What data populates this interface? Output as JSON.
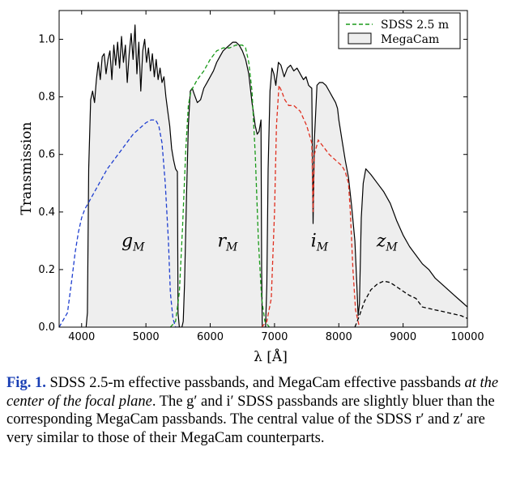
{
  "chart_data": {
    "type": "line",
    "xlabel": "λ [Å]",
    "ylabel": "Transmission",
    "xlim": [
      3650,
      10000
    ],
    "ylim": [
      0,
      1.1
    ],
    "xticks": [
      4000,
      5000,
      6000,
      7000,
      8000,
      9000,
      10000
    ],
    "yticks": [
      0.0,
      0.2,
      0.4,
      0.6,
      0.8,
      1.0
    ],
    "ytick_labels": [
      "0.0",
      "0.2",
      "0.4",
      "0.6",
      "0.8",
      "1.0"
    ],
    "legend": {
      "placement": "top-right",
      "entries": [
        "SDSS 2.5 m",
        "MegaCam"
      ]
    },
    "band_labels": [
      {
        "main": "g",
        "sub": "M",
        "x": 4800,
        "y": 0.28
      },
      {
        "main": "r",
        "sub": "M",
        "x": 6270,
        "y": 0.28
      },
      {
        "main": "i",
        "sub": "M",
        "x": 7700,
        "y": 0.28
      },
      {
        "main": "z",
        "sub": "M",
        "x": 8750,
        "y": 0.28
      }
    ],
    "series": [
      {
        "name": "MegaCam",
        "style": "filled",
        "color": "#000000",
        "fill": "#eeeeee",
        "points": [
          [
            4070,
            0
          ],
          [
            4090,
            0.05
          ],
          [
            4110,
            0.55
          ],
          [
            4140,
            0.79
          ],
          [
            4170,
            0.82
          ],
          [
            4200,
            0.78
          ],
          [
            4230,
            0.86
          ],
          [
            4260,
            0.92
          ],
          [
            4290,
            0.86
          ],
          [
            4320,
            0.94
          ],
          [
            4350,
            0.95
          ],
          [
            4380,
            0.88
          ],
          [
            4410,
            0.93
          ],
          [
            4440,
            0.96
          ],
          [
            4470,
            0.86
          ],
          [
            4500,
            0.98
          ],
          [
            4530,
            0.91
          ],
          [
            4560,
            0.99
          ],
          [
            4590,
            0.9
          ],
          [
            4620,
            1.01
          ],
          [
            4650,
            0.92
          ],
          [
            4680,
            0.98
          ],
          [
            4710,
            0.85
          ],
          [
            4740,
            0.95
          ],
          [
            4770,
            1.02
          ],
          [
            4800,
            0.93
          ],
          [
            4830,
            1.05
          ],
          [
            4860,
            0.88
          ],
          [
            4890,
            0.99
          ],
          [
            4920,
            0.82
          ],
          [
            4950,
            0.96
          ],
          [
            4980,
            1.0
          ],
          [
            5010,
            0.92
          ],
          [
            5040,
            0.97
          ],
          [
            5070,
            0.89
          ],
          [
            5100,
            0.95
          ],
          [
            5130,
            0.87
          ],
          [
            5160,
            0.93
          ],
          [
            5190,
            0.86
          ],
          [
            5220,
            0.9
          ],
          [
            5250,
            0.85
          ],
          [
            5280,
            0.87
          ],
          [
            5310,
            0.8
          ],
          [
            5340,
            0.75
          ],
          [
            5370,
            0.7
          ],
          [
            5400,
            0.62
          ],
          [
            5430,
            0.58
          ],
          [
            5460,
            0.55
          ],
          [
            5490,
            0.54
          ],
          [
            5500,
            0.05
          ],
          [
            5520,
            0
          ],
          [
            5560,
            0
          ],
          [
            5580,
            0.02
          ],
          [
            5600,
            0.15
          ],
          [
            5630,
            0.45
          ],
          [
            5660,
            0.7
          ],
          [
            5690,
            0.82
          ],
          [
            5720,
            0.83
          ],
          [
            5750,
            0.81
          ],
          [
            5800,
            0.78
          ],
          [
            5850,
            0.79
          ],
          [
            5900,
            0.83
          ],
          [
            5950,
            0.85
          ],
          [
            6000,
            0.87
          ],
          [
            6050,
            0.89
          ],
          [
            6100,
            0.92
          ],
          [
            6150,
            0.94
          ],
          [
            6200,
            0.96
          ],
          [
            6250,
            0.97
          ],
          [
            6300,
            0.98
          ],
          [
            6350,
            0.99
          ],
          [
            6400,
            0.99
          ],
          [
            6450,
            0.98
          ],
          [
            6500,
            0.96
          ],
          [
            6550,
            0.93
          ],
          [
            6600,
            0.88
          ],
          [
            6650,
            0.78
          ],
          [
            6700,
            0.7
          ],
          [
            6730,
            0.67
          ],
          [
            6760,
            0.68
          ],
          [
            6790,
            0.72
          ],
          [
            6800,
            0.2
          ],
          [
            6810,
            0
          ],
          [
            6860,
            0
          ],
          [
            6880,
            0.15
          ],
          [
            6900,
            0.55
          ],
          [
            6930,
            0.82
          ],
          [
            6960,
            0.9
          ],
          [
            6990,
            0.88
          ],
          [
            7020,
            0.84
          ],
          [
            7060,
            0.92
          ],
          [
            7100,
            0.91
          ],
          [
            7150,
            0.87
          ],
          [
            7200,
            0.9
          ],
          [
            7250,
            0.91
          ],
          [
            7300,
            0.89
          ],
          [
            7350,
            0.9
          ],
          [
            7400,
            0.88
          ],
          [
            7450,
            0.86
          ],
          [
            7490,
            0.87
          ],
          [
            7530,
            0.84
          ],
          [
            7580,
            0.83
          ],
          [
            7600,
            0.36
          ],
          [
            7620,
            0.65
          ],
          [
            7660,
            0.84
          ],
          [
            7700,
            0.85
          ],
          [
            7750,
            0.85
          ],
          [
            7800,
            0.84
          ],
          [
            7850,
            0.82
          ],
          [
            7900,
            0.8
          ],
          [
            7950,
            0.78
          ],
          [
            7980,
            0.76
          ],
          [
            8000,
            0.72
          ],
          [
            8050,
            0.65
          ],
          [
            8100,
            0.58
          ],
          [
            8150,
            0.52
          ],
          [
            8200,
            0.42
          ],
          [
            8250,
            0.3
          ],
          [
            8280,
            0.15
          ],
          [
            8300,
            0.04
          ],
          [
            8320,
            0.08
          ],
          [
            8350,
            0.38
          ],
          [
            8380,
            0.5
          ],
          [
            8420,
            0.55
          ],
          [
            8500,
            0.53
          ],
          [
            8600,
            0.5
          ],
          [
            8700,
            0.47
          ],
          [
            8800,
            0.43
          ],
          [
            8900,
            0.37
          ],
          [
            9000,
            0.32
          ],
          [
            9100,
            0.28
          ],
          [
            9200,
            0.25
          ],
          [
            9300,
            0.22
          ],
          [
            9400,
            0.2
          ],
          [
            9500,
            0.17
          ],
          [
            9600,
            0.15
          ],
          [
            9700,
            0.13
          ],
          [
            9800,
            0.11
          ],
          [
            9900,
            0.09
          ],
          [
            10000,
            0.07
          ]
        ]
      },
      {
        "name": "SDSS g",
        "color": "#1f3fd0",
        "points": [
          [
            3650,
            0
          ],
          [
            3780,
            0.05
          ],
          [
            3850,
            0.17
          ],
          [
            3900,
            0.26
          ],
          [
            3950,
            0.33
          ],
          [
            4000,
            0.38
          ],
          [
            4050,
            0.41
          ],
          [
            4100,
            0.43
          ],
          [
            4200,
            0.47
          ],
          [
            4300,
            0.51
          ],
          [
            4400,
            0.55
          ],
          [
            4500,
            0.58
          ],
          [
            4600,
            0.61
          ],
          [
            4700,
            0.64
          ],
          [
            4800,
            0.67
          ],
          [
            4900,
            0.69
          ],
          [
            5000,
            0.71
          ],
          [
            5080,
            0.72
          ],
          [
            5150,
            0.72
          ],
          [
            5200,
            0.7
          ],
          [
            5250,
            0.64
          ],
          [
            5300,
            0.5
          ],
          [
            5350,
            0.3
          ],
          [
            5380,
            0.12
          ],
          [
            5420,
            0.03
          ],
          [
            5460,
            0
          ],
          [
            5520,
            0
          ]
        ]
      },
      {
        "name": "SDSS r",
        "color": "#1a9a1a",
        "points": [
          [
            5380,
            0
          ],
          [
            5460,
            0.02
          ],
          [
            5520,
            0.12
          ],
          [
            5570,
            0.35
          ],
          [
            5620,
            0.62
          ],
          [
            5660,
            0.77
          ],
          [
            5700,
            0.82
          ],
          [
            5750,
            0.84
          ],
          [
            5800,
            0.86
          ],
          [
            5900,
            0.89
          ],
          [
            6000,
            0.93
          ],
          [
            6100,
            0.96
          ],
          [
            6200,
            0.97
          ],
          [
            6300,
            0.97
          ],
          [
            6400,
            0.98
          ],
          [
            6500,
            0.98
          ],
          [
            6550,
            0.97
          ],
          [
            6600,
            0.92
          ],
          [
            6650,
            0.82
          ],
          [
            6700,
            0.6
          ],
          [
            6750,
            0.3
          ],
          [
            6800,
            0.1
          ],
          [
            6850,
            0.02
          ],
          [
            6920,
            0
          ]
        ]
      },
      {
        "name": "SDSS i",
        "color": "#e03020",
        "points": [
          [
            6800,
            0
          ],
          [
            6880,
            0.02
          ],
          [
            6950,
            0.1
          ],
          [
            7000,
            0.4
          ],
          [
            7030,
            0.7
          ],
          [
            7070,
            0.84
          ],
          [
            7110,
            0.82
          ],
          [
            7160,
            0.79
          ],
          [
            7220,
            0.77
          ],
          [
            7300,
            0.77
          ],
          [
            7400,
            0.75
          ],
          [
            7500,
            0.7
          ],
          [
            7580,
            0.64
          ],
          [
            7600,
            0.4
          ],
          [
            7620,
            0.6
          ],
          [
            7680,
            0.65
          ],
          [
            7750,
            0.63
          ],
          [
            7850,
            0.6
          ],
          [
            7950,
            0.58
          ],
          [
            8050,
            0.56
          ],
          [
            8100,
            0.54
          ],
          [
            8150,
            0.5
          ],
          [
            8180,
            0.4
          ],
          [
            8220,
            0.2
          ],
          [
            8260,
            0.06
          ],
          [
            8320,
            0
          ]
        ]
      },
      {
        "name": "SDSS z",
        "color": "#000000",
        "points": [
          [
            8250,
            0
          ],
          [
            8320,
            0.04
          ],
          [
            8400,
            0.09
          ],
          [
            8500,
            0.13
          ],
          [
            8600,
            0.15
          ],
          [
            8700,
            0.16
          ],
          [
            8800,
            0.155
          ],
          [
            8900,
            0.14
          ],
          [
            9000,
            0.125
          ],
          [
            9100,
            0.11
          ],
          [
            9200,
            0.1
          ],
          [
            9300,
            0.07
          ],
          [
            9400,
            0.065
          ],
          [
            9500,
            0.06
          ],
          [
            9600,
            0.055
          ],
          [
            9700,
            0.05
          ],
          [
            9800,
            0.045
          ],
          [
            9900,
            0.04
          ],
          [
            10000,
            0.03
          ]
        ]
      }
    ]
  },
  "caption": {
    "fig_label": "Fig. 1.",
    "part1": " SDSS 2.5-m effective passbands, and MegaCam effective passbands ",
    "italic": "at the center of the focal plane",
    "part2": ". The g′ and i′ SDSS passbands are slightly bluer than the corresponding MegaCam passbands. The central value of the SDSS r′ and z′ are very similar to those of their MegaCam counterparts."
  }
}
